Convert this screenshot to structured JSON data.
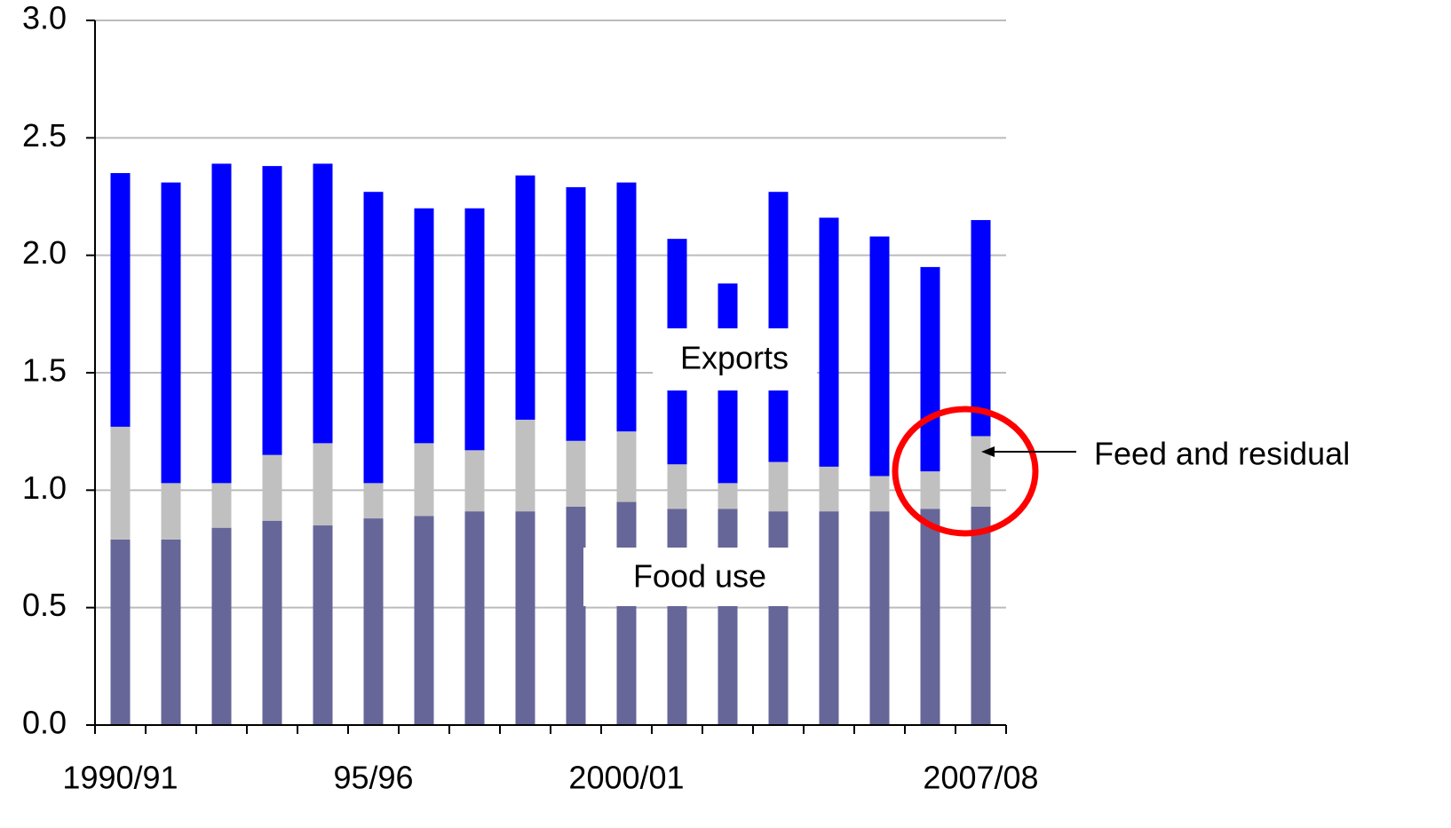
{
  "chart_data": {
    "type": "stacked-bar",
    "categories": [
      "1990/91",
      null,
      null,
      null,
      null,
      "95/96",
      null,
      null,
      null,
      null,
      "2000/01",
      null,
      null,
      null,
      null,
      null,
      null,
      "2007/08"
    ],
    "series": [
      {
        "name": "Food use",
        "color": "#666699",
        "values": [
          0.79,
          0.79,
          0.84,
          0.87,
          0.85,
          0.88,
          0.89,
          0.91,
          0.91,
          0.93,
          0.95,
          0.92,
          0.92,
          0.91,
          0.91,
          0.91,
          0.92,
          0.93
        ]
      },
      {
        "name": "Feed and residual",
        "color": "#c0c0c0",
        "values": [
          0.48,
          0.24,
          0.19,
          0.28,
          0.35,
          0.15,
          0.31,
          0.26,
          0.39,
          0.28,
          0.3,
          0.19,
          0.11,
          0.21,
          0.19,
          0.15,
          0.16,
          0.3
        ]
      },
      {
        "name": "Exports",
        "color": "#0000ff",
        "values": [
          1.08,
          1.28,
          1.36,
          1.23,
          1.19,
          1.24,
          1.0,
          1.03,
          1.04,
          1.08,
          1.06,
          0.96,
          0.85,
          1.15,
          1.06,
          1.02,
          0.87,
          0.92
        ]
      }
    ],
    "ylim": [
      0,
      3
    ],
    "yticks": [
      {
        "value": 0,
        "label": "0.0"
      },
      {
        "value": 0.5,
        "label": "0.5"
      },
      {
        "value": 1,
        "label": "1.0"
      },
      {
        "value": 1.5,
        "label": "1.5"
      },
      {
        "value": 2,
        "label": "2.0"
      },
      {
        "value": 2.5,
        "label": "2.5"
      },
      {
        "value": 3,
        "label": "3.0"
      }
    ],
    "grid": true
  }
}
